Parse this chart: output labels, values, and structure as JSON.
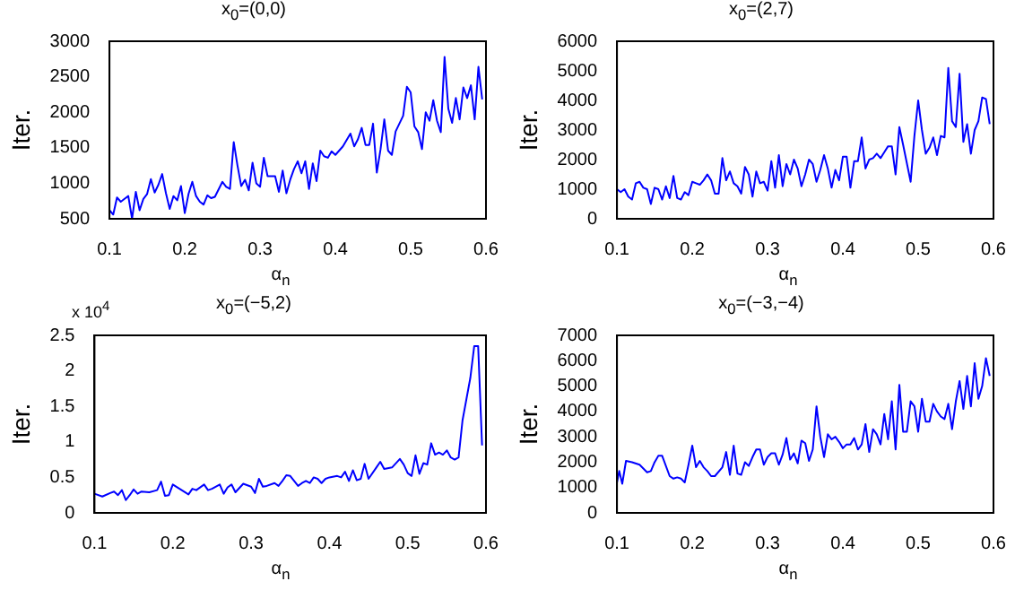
{
  "chart_data": [
    {
      "type": "line",
      "title": "x$_{0}$=(0,0)",
      "xlabel": "α$_{n}$",
      "ylabel": "Iter.",
      "grid": false,
      "legend": false,
      "xlim": [
        0.1,
        0.6
      ],
      "xticks": [
        0.1,
        0.2,
        0.3,
        0.4,
        0.5,
        0.6
      ],
      "ylim": [
        500,
        3000
      ],
      "yticks": [
        500,
        1000,
        1500,
        2000,
        2500,
        3000
      ],
      "x": [
        0.1,
        0.105,
        0.11,
        0.115,
        0.12,
        0.125,
        0.13,
        0.135,
        0.14,
        0.145,
        0.15,
        0.155,
        0.16,
        0.165,
        0.17,
        0.175,
        0.18,
        0.185,
        0.19,
        0.195,
        0.2,
        0.205,
        0.21,
        0.215,
        0.22,
        0.225,
        0.23,
        0.235,
        0.24,
        0.25,
        0.255,
        0.26,
        0.265,
        0.27,
        0.275,
        0.28,
        0.285,
        0.29,
        0.295,
        0.3,
        0.305,
        0.31,
        0.315,
        0.32,
        0.325,
        0.33,
        0.335,
        0.34,
        0.345,
        0.35,
        0.355,
        0.36,
        0.365,
        0.37,
        0.375,
        0.38,
        0.385,
        0.39,
        0.395,
        0.4,
        0.41,
        0.42,
        0.425,
        0.43,
        0.435,
        0.44,
        0.445,
        0.45,
        0.455,
        0.46,
        0.465,
        0.47,
        0.475,
        0.48,
        0.49,
        0.495,
        0.5,
        0.505,
        0.51,
        0.515,
        0.52,
        0.525,
        0.53,
        0.535,
        0.54,
        0.545,
        0.55,
        0.555,
        0.56,
        0.565,
        0.57,
        0.575,
        0.58,
        0.585,
        0.59,
        0.595
      ],
      "series": [
        {
          "color": "#0000ff",
          "values": [
            620,
            560,
            800,
            740,
            780,
            820,
            500,
            880,
            620,
            780,
            850,
            1060,
            870,
            980,
            1130,
            860,
            640,
            820,
            760,
            960,
            580,
            850,
            1020,
            820,
            740,
            700,
            830,
            790,
            810,
            1020,
            950,
            920,
            1580,
            1250,
            960,
            1050,
            900,
            1290,
            1000,
            950,
            1360,
            1100,
            1100,
            1100,
            880,
            1180,
            860,
            1050,
            1200,
            1310,
            1140,
            1310,
            920,
            1280,
            1030,
            1460,
            1380,
            1360,
            1450,
            1400,
            1520,
            1700,
            1520,
            1620,
            1780,
            1540,
            1540,
            1840,
            1150,
            1480,
            1900,
            1460,
            1400,
            1730,
            1950,
            2360,
            2280,
            1800,
            1720,
            1480,
            2000,
            1880,
            2170,
            1880,
            1720,
            2780,
            2050,
            1850,
            2200,
            1900,
            2350,
            2200,
            2380,
            1900,
            2640,
            2180
          ]
        }
      ]
    },
    {
      "type": "line",
      "title": "x$_{0}$=(2,7)",
      "xlabel": "α$_{n}$",
      "ylabel": "Iter.",
      "grid": false,
      "legend": false,
      "xlim": [
        0.1,
        0.6
      ],
      "xticks": [
        0.1,
        0.2,
        0.3,
        0.4,
        0.5,
        0.6
      ],
      "ylim": [
        0,
        6000
      ],
      "yticks": [
        0,
        1000,
        2000,
        3000,
        4000,
        5000,
        6000
      ],
      "x": [
        0.1,
        0.105,
        0.11,
        0.115,
        0.12,
        0.125,
        0.13,
        0.135,
        0.14,
        0.145,
        0.15,
        0.155,
        0.16,
        0.165,
        0.17,
        0.175,
        0.18,
        0.185,
        0.19,
        0.195,
        0.2,
        0.205,
        0.21,
        0.215,
        0.22,
        0.225,
        0.23,
        0.235,
        0.24,
        0.245,
        0.25,
        0.255,
        0.26,
        0.265,
        0.27,
        0.275,
        0.28,
        0.285,
        0.29,
        0.295,
        0.3,
        0.305,
        0.31,
        0.315,
        0.32,
        0.325,
        0.33,
        0.335,
        0.34,
        0.345,
        0.35,
        0.355,
        0.36,
        0.365,
        0.37,
        0.375,
        0.38,
        0.385,
        0.39,
        0.395,
        0.4,
        0.405,
        0.41,
        0.415,
        0.42,
        0.425,
        0.43,
        0.435,
        0.44,
        0.445,
        0.45,
        0.455,
        0.46,
        0.465,
        0.47,
        0.475,
        0.48,
        0.49,
        0.495,
        0.5,
        0.505,
        0.51,
        0.515,
        0.52,
        0.525,
        0.53,
        0.535,
        0.54,
        0.545,
        0.55,
        0.555,
        0.56,
        0.565,
        0.57,
        0.575,
        0.58,
        0.585,
        0.59,
        0.595
      ],
      "series": [
        {
          "color": "#0000ff",
          "values": [
            1000,
            900,
            1000,
            750,
            650,
            1200,
            1250,
            1050,
            1000,
            500,
            1050,
            1000,
            650,
            1100,
            700,
            1450,
            700,
            650,
            900,
            800,
            1250,
            1200,
            1150,
            1300,
            1500,
            1300,
            850,
            850,
            2050,
            1300,
            1600,
            1200,
            1100,
            850,
            1750,
            1500,
            750,
            1600,
            1200,
            1250,
            950,
            1950,
            1050,
            2150,
            1100,
            1850,
            1500,
            2000,
            1700,
            1100,
            1500,
            2000,
            1850,
            1250,
            1650,
            2150,
            1700,
            1050,
            1650,
            1300,
            2100,
            2100,
            1050,
            1950,
            1950,
            2750,
            1700,
            2000,
            2050,
            2200,
            2050,
            2250,
            2450,
            2450,
            1500,
            3100,
            2500,
            1250,
            2800,
            4000,
            3000,
            2200,
            2400,
            2750,
            2150,
            2800,
            2750,
            5100,
            3300,
            3100,
            4900,
            2600,
            3200,
            2200,
            3000,
            3300,
            4100,
            4050,
            3200
          ]
        }
      ]
    },
    {
      "type": "line",
      "title": "x$_{0}$=(−5,2)",
      "xlabel": "α$_{n}$",
      "ylabel": "Iter.",
      "annotations": [
        "x 10$^{4}$"
      ],
      "grid": false,
      "legend": false,
      "xlim": [
        0.1,
        0.6
      ],
      "xticks": [
        0.1,
        0.2,
        0.3,
        0.4,
        0.5,
        0.6
      ],
      "ylim": [
        0,
        2.5
      ],
      "yticks": [
        0,
        0.5,
        1,
        1.5,
        2,
        2.5
      ],
      "x": [
        0.1,
        0.11,
        0.12,
        0.125,
        0.13,
        0.135,
        0.14,
        0.145,
        0.15,
        0.155,
        0.16,
        0.17,
        0.18,
        0.185,
        0.19,
        0.195,
        0.2,
        0.21,
        0.22,
        0.225,
        0.23,
        0.24,
        0.245,
        0.25,
        0.26,
        0.265,
        0.27,
        0.275,
        0.28,
        0.29,
        0.3,
        0.305,
        0.31,
        0.315,
        0.32,
        0.33,
        0.335,
        0.34,
        0.345,
        0.35,
        0.36,
        0.365,
        0.37,
        0.375,
        0.38,
        0.385,
        0.39,
        0.395,
        0.4,
        0.41,
        0.415,
        0.42,
        0.425,
        0.43,
        0.435,
        0.44,
        0.445,
        0.45,
        0.46,
        0.465,
        0.47,
        0.48,
        0.49,
        0.495,
        0.5,
        0.505,
        0.51,
        0.515,
        0.52,
        0.525,
        0.53,
        0.535,
        0.54,
        0.545,
        0.55,
        0.555,
        0.56,
        0.565,
        0.57,
        0.575,
        0.58,
        0.585,
        0.59,
        0.595
      ],
      "series": [
        {
          "color": "#0000ff",
          "values": [
            0.27,
            0.23,
            0.28,
            0.3,
            0.25,
            0.32,
            0.18,
            0.25,
            0.33,
            0.27,
            0.3,
            0.29,
            0.32,
            0.44,
            0.24,
            0.25,
            0.4,
            0.33,
            0.26,
            0.34,
            0.32,
            0.4,
            0.32,
            0.34,
            0.4,
            0.27,
            0.36,
            0.4,
            0.29,
            0.41,
            0.37,
            0.28,
            0.48,
            0.37,
            0.38,
            0.42,
            0.38,
            0.45,
            0.53,
            0.52,
            0.38,
            0.42,
            0.45,
            0.42,
            0.5,
            0.48,
            0.42,
            0.48,
            0.5,
            0.52,
            0.5,
            0.58,
            0.45,
            0.6,
            0.46,
            0.48,
            0.69,
            0.48,
            0.64,
            0.72,
            0.62,
            0.64,
            0.76,
            0.68,
            0.56,
            0.52,
            0.81,
            0.55,
            0.7,
            0.68,
            0.98,
            0.82,
            0.85,
            0.82,
            0.88,
            0.78,
            0.75,
            0.78,
            1.3,
            1.6,
            1.9,
            2.35,
            2.35,
            0.95
          ]
        }
      ]
    },
    {
      "type": "line",
      "title": "x$_{0}$=(−3,−4)",
      "xlabel": "α$_{n}$",
      "ylabel": "Iter.",
      "grid": false,
      "legend": false,
      "xlim": [
        0.1,
        0.6
      ],
      "xticks": [
        0.1,
        0.2,
        0.3,
        0.4,
        0.5,
        0.6
      ],
      "ylim": [
        0,
        7000
      ],
      "yticks": [
        0,
        1000,
        2000,
        3000,
        4000,
        5000,
        6000,
        7000
      ],
      "x": [
        0.1,
        0.103,
        0.107,
        0.112,
        0.12,
        0.13,
        0.14,
        0.145,
        0.15,
        0.155,
        0.16,
        0.17,
        0.175,
        0.18,
        0.185,
        0.19,
        0.195,
        0.2,
        0.205,
        0.21,
        0.215,
        0.22,
        0.225,
        0.23,
        0.24,
        0.245,
        0.25,
        0.255,
        0.26,
        0.265,
        0.27,
        0.275,
        0.28,
        0.285,
        0.29,
        0.295,
        0.3,
        0.305,
        0.31,
        0.315,
        0.32,
        0.325,
        0.33,
        0.335,
        0.34,
        0.345,
        0.35,
        0.355,
        0.36,
        0.365,
        0.37,
        0.375,
        0.38,
        0.385,
        0.39,
        0.395,
        0.4,
        0.405,
        0.41,
        0.415,
        0.42,
        0.425,
        0.43,
        0.435,
        0.44,
        0.445,
        0.45,
        0.455,
        0.46,
        0.465,
        0.47,
        0.475,
        0.48,
        0.485,
        0.49,
        0.495,
        0.5,
        0.505,
        0.51,
        0.515,
        0.52,
        0.525,
        0.53,
        0.535,
        0.54,
        0.545,
        0.55,
        0.555,
        0.56,
        0.565,
        0.57,
        0.575,
        0.58,
        0.585,
        0.59,
        0.595
      ],
      "series": [
        {
          "color": "#0000ff",
          "values": [
            1200,
            1650,
            1150,
            2050,
            2000,
            1900,
            1600,
            1650,
            2000,
            2250,
            2250,
            1450,
            1350,
            1400,
            1350,
            1200,
            1900,
            2650,
            1800,
            2050,
            1800,
            1650,
            1450,
            1450,
            1800,
            2400,
            1500,
            2650,
            1550,
            1500,
            2000,
            1850,
            2200,
            2500,
            2500,
            1900,
            2200,
            2350,
            2350,
            1900,
            2300,
            2950,
            2100,
            2350,
            1950,
            2850,
            2750,
            2050,
            2500,
            4200,
            3000,
            2200,
            3100,
            2900,
            3000,
            2800,
            2550,
            2700,
            2700,
            2950,
            2500,
            2700,
            3500,
            2400,
            3300,
            3100,
            2700,
            3900,
            2900,
            4400,
            2500,
            5050,
            3200,
            3200,
            4400,
            4200,
            3200,
            4500,
            3600,
            3600,
            4300,
            4000,
            3800,
            3700,
            4300,
            3300,
            4400,
            5200,
            4100,
            5400,
            4200,
            5900,
            4500,
            5000,
            6100,
            5400
          ]
        }
      ]
    }
  ]
}
